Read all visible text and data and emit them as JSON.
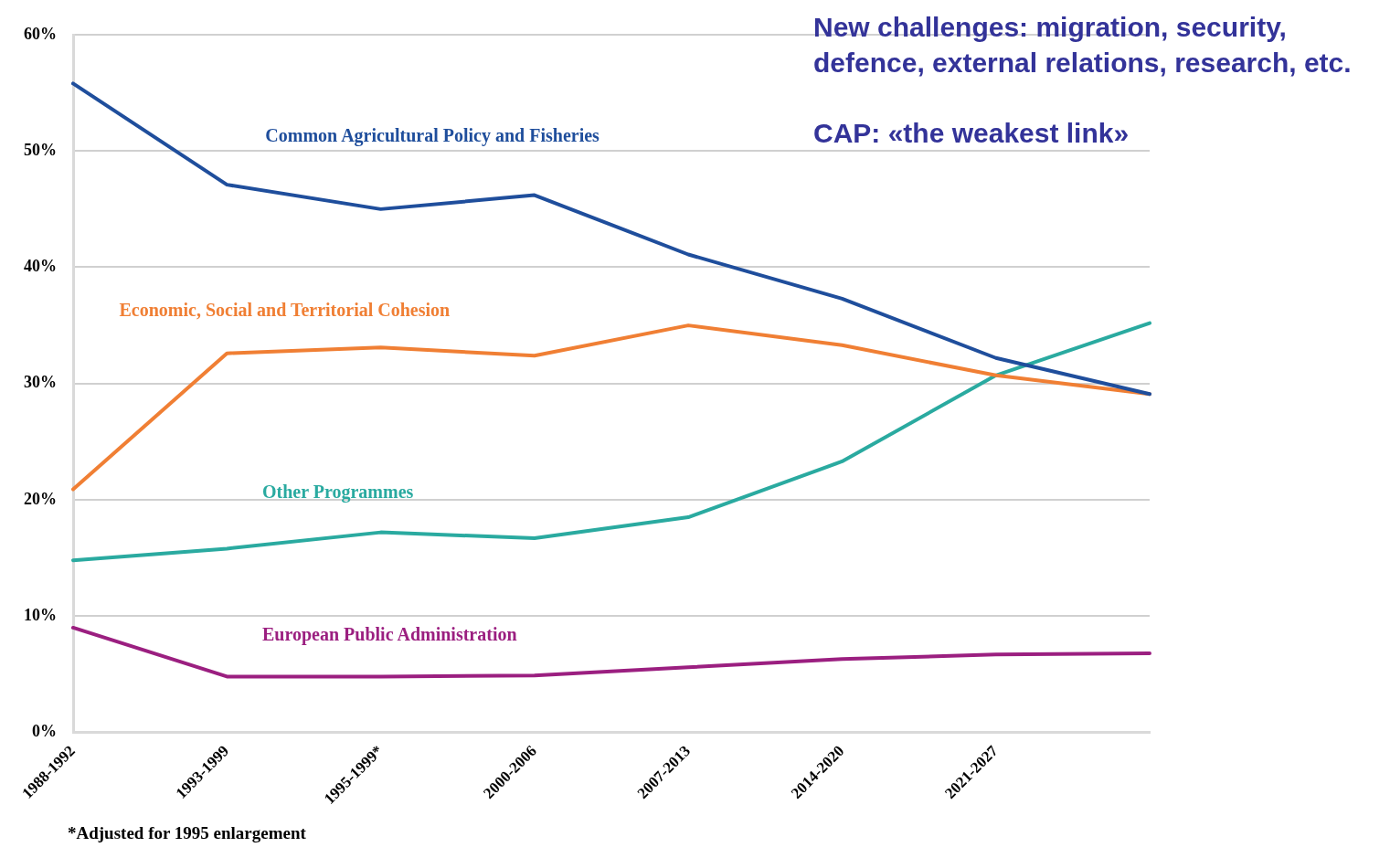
{
  "chart_data": {
    "type": "line",
    "categories": [
      "1988-1992",
      "1993-1999",
      "1995-1999*",
      "2000-2006",
      "2007-2013",
      "2014-2020",
      "2021-2027",
      null
    ],
    "ylim": [
      0,
      60
    ],
    "yticks": [
      {
        "value": 0,
        "label": "0%"
      },
      {
        "value": 10,
        "label": "10%"
      },
      {
        "value": 20,
        "label": "20%"
      },
      {
        "value": 30,
        "label": "30%"
      },
      {
        "value": 40,
        "label": "40%"
      },
      {
        "value": 50,
        "label": "50%"
      },
      {
        "value": 60,
        "label": "60%"
      }
    ],
    "grid": "y",
    "line_style": "solid",
    "marker": "none",
    "legend": false,
    "series": [
      {
        "name": "Common Agricultural Policy and Fisheries",
        "color": "#1f4e9c",
        "values": [
          55.8,
          47.1,
          45.0,
          46.2,
          41.1,
          37.3,
          32.2,
          29.1
        ]
      },
      {
        "name": "Economic, Social and Territorial Cohesion",
        "color": "#f07f34",
        "values": [
          20.9,
          32.6,
          33.1,
          32.4,
          35.0,
          33.3,
          30.7,
          29.1
        ]
      },
      {
        "name": "Other Programmes",
        "color": "#2aaaa0",
        "values": [
          14.8,
          15.8,
          17.2,
          16.7,
          18.5,
          23.3,
          30.7,
          35.2
        ]
      },
      {
        "name": "European Public Administration",
        "color": "#9b1f80",
        "values": [
          9.0,
          4.8,
          4.8,
          4.9,
          5.6,
          6.3,
          6.7,
          6.8
        ]
      }
    ],
    "annotations": [
      "New challenges: migration, security, defence, external relations, research, etc.",
      "CAP: «the weakest link»",
      "*Adjusted for 1995 enlargement"
    ]
  }
}
